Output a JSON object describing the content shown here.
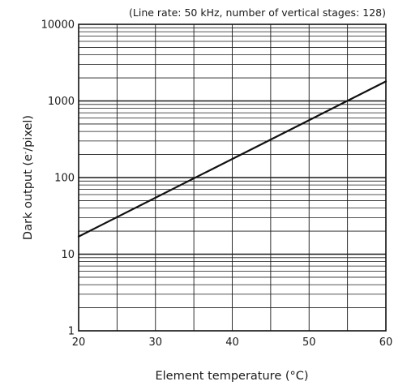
{
  "chart_data": {
    "type": "line",
    "annotation": "(Line rate: 50 kHz, number of vertical stages: 128)",
    "xlabel": "Element temperature (°C)",
    "ylabel_prefix": "Dark output (e",
    "ylabel_sup": "-",
    "ylabel_suffix": "/pixel)",
    "xlim": [
      20,
      60
    ],
    "ylim": [
      1,
      10000
    ],
    "yscale": "log",
    "grid": true,
    "x_ticks": [
      "20",
      "30",
      "40",
      "50",
      "60"
    ],
    "y_ticks": [
      "1",
      "10",
      "100",
      "1000",
      "10000"
    ],
    "series": [
      {
        "x": [
          20,
          60
        ],
        "y": [
          17,
          1800
        ]
      }
    ],
    "colors": {
      "line": "#111111",
      "grid": "#1a1a1a",
      "frame": "#111111"
    }
  }
}
